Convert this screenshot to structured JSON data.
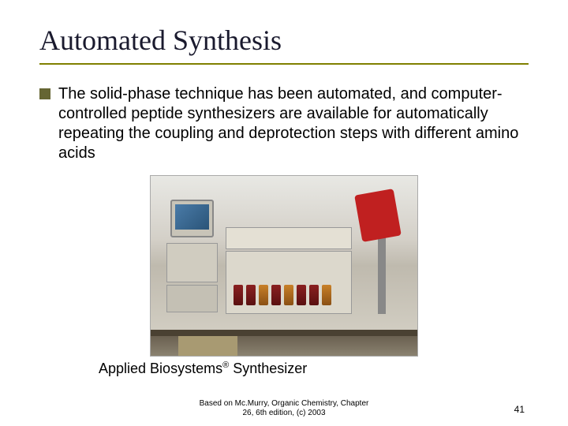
{
  "title": "Automated Synthesis",
  "bullet": {
    "text": "The solid-phase technique has been automated, and computer-controlled peptide synthesizers are available for automatically repeating the coupling and deprotection steps with different amino acids"
  },
  "caption": {
    "prefix": "Applied Biosystems",
    "reg": "®",
    "suffix": " Synthesizer"
  },
  "footer": {
    "line1": "Based on Mc.Murry, Organic Chemistry, Chapter",
    "line2": "26, 6th edition, (c) 2003"
  },
  "page_number": "41",
  "colors": {
    "accent": "#808000",
    "bullet_fill": "#666633",
    "title_text": "#1a1a2e"
  },
  "image": {
    "description": "Laboratory bench with CRT monitor, stacked PC units, peptide synthesizer instrument with reagent bottles, and red robotic arm",
    "reagents": {
      "count": 8,
      "dark_color": "#5a1010",
      "amber_color": "#8a5014"
    },
    "arm_color": "#c02020"
  }
}
